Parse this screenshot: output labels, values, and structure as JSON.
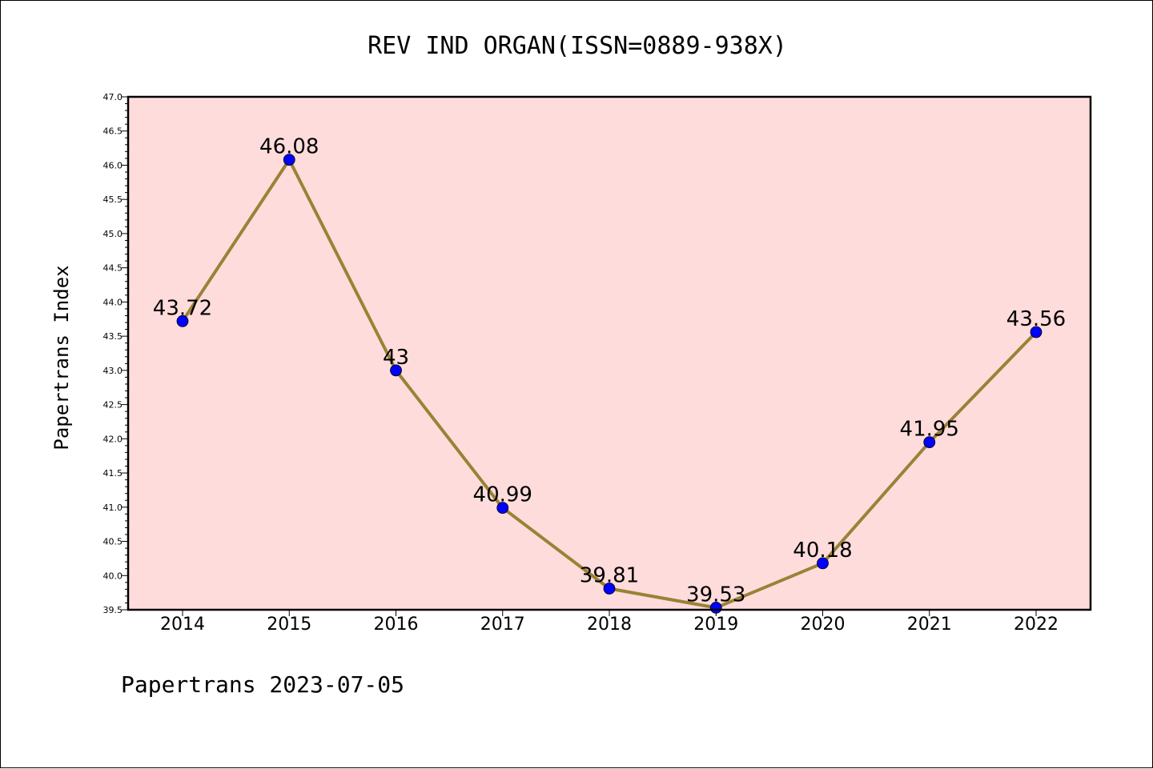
{
  "chart_data": {
    "type": "line",
    "title": "REV IND ORGAN(ISSN=0889-938X)",
    "ylabel": "Papertrans Index",
    "xlabel": "",
    "categories": [
      "2014",
      "2015",
      "2016",
      "2017",
      "2018",
      "2019",
      "2020",
      "2021",
      "2022"
    ],
    "series": [
      {
        "values": [
          43.72,
          46.08,
          43,
          40.99,
          39.81,
          39.53,
          40.18,
          41.95,
          43.56
        ],
        "labels": [
          "43.72",
          "46.08",
          "43",
          "40.99",
          "39.81",
          "39.53",
          "40.18",
          "41.95",
          "43.56"
        ]
      }
    ],
    "ylim": [
      39.5,
      47.0
    ],
    "yticks": [
      "39.5",
      "40.0",
      "40.5",
      "41.0",
      "41.5",
      "42.0",
      "42.5",
      "43.0",
      "43.5",
      "44.0",
      "44.5",
      "45.0",
      "45.5",
      "46.0",
      "46.5",
      "47.0"
    ],
    "grid": false,
    "colors": {
      "plot_background": "#ffdcdc",
      "line": "#9a8236",
      "marker": "#0000ff"
    }
  },
  "footer": "Papertrans 2023-07-05"
}
